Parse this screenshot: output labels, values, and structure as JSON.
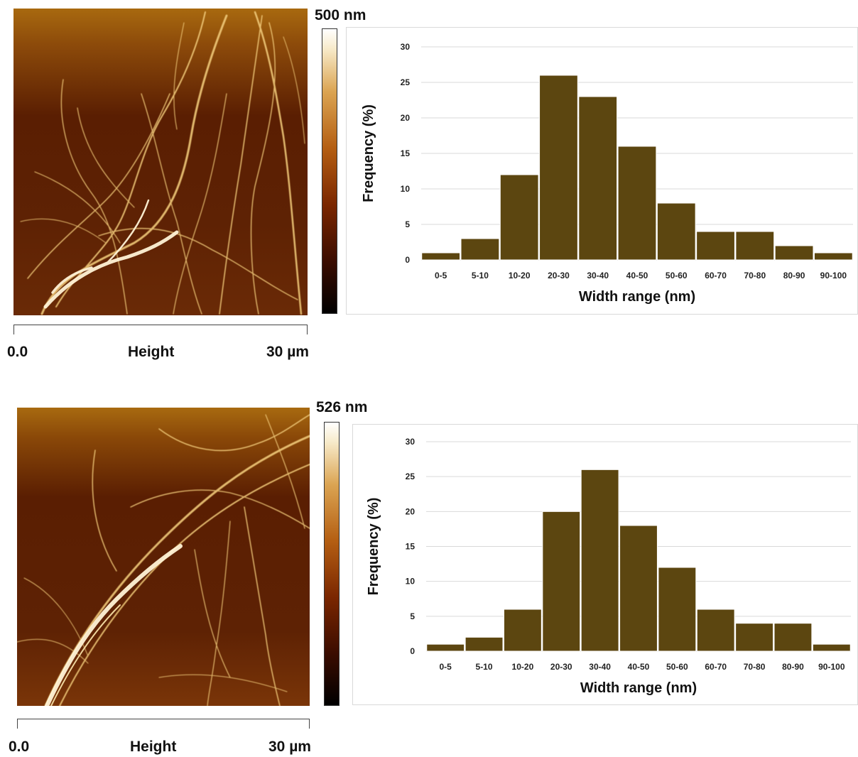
{
  "colors": {
    "bar_fill": "#5c4610",
    "bar_stroke": "#ffffff",
    "grid": "#d9d9d9"
  },
  "panels": [
    {
      "afm_image": {
        "colormap": "afm-hot",
        "colorbar_max": "500 nm",
        "scale_start": "0.0",
        "scale_label": "Height",
        "scale_end": "30 µm"
      }
    },
    {
      "afm_image": {
        "colormap": "afm-hot",
        "colorbar_max": "526 nm",
        "scale_start": "0.0",
        "scale_label": "Height",
        "scale_end": "30 µm"
      }
    }
  ],
  "chart_data": [
    {
      "type": "bar",
      "categories": [
        "0-5",
        "5-10",
        "10-20",
        "20-30",
        "30-40",
        "40-50",
        "50-60",
        "60-70",
        "70-80",
        "80-90",
        "90-100"
      ],
      "values": [
        1,
        3,
        12,
        26,
        23,
        16,
        8,
        4,
        4,
        2,
        1
      ],
      "xlabel": "Width range (nm)",
      "ylabel": "Frequency (%)",
      "ylim": [
        0,
        30
      ],
      "yticks": [
        0,
        5,
        10,
        15,
        20,
        25,
        30
      ],
      "grid": true,
      "legend": "none"
    },
    {
      "type": "bar",
      "categories": [
        "0-5",
        "5-10",
        "10-20",
        "20-30",
        "30-40",
        "40-50",
        "50-60",
        "60-70",
        "70-80",
        "80-90",
        "90-100"
      ],
      "values": [
        1,
        2,
        6,
        20,
        26,
        18,
        12,
        6,
        4,
        4,
        1
      ],
      "xlabel": "Width range (nm)",
      "ylabel": "Frequency (%)",
      "ylim": [
        0,
        30
      ],
      "yticks": [
        0,
        5,
        10,
        15,
        20,
        25,
        30
      ],
      "grid": true,
      "legend": "none"
    }
  ]
}
